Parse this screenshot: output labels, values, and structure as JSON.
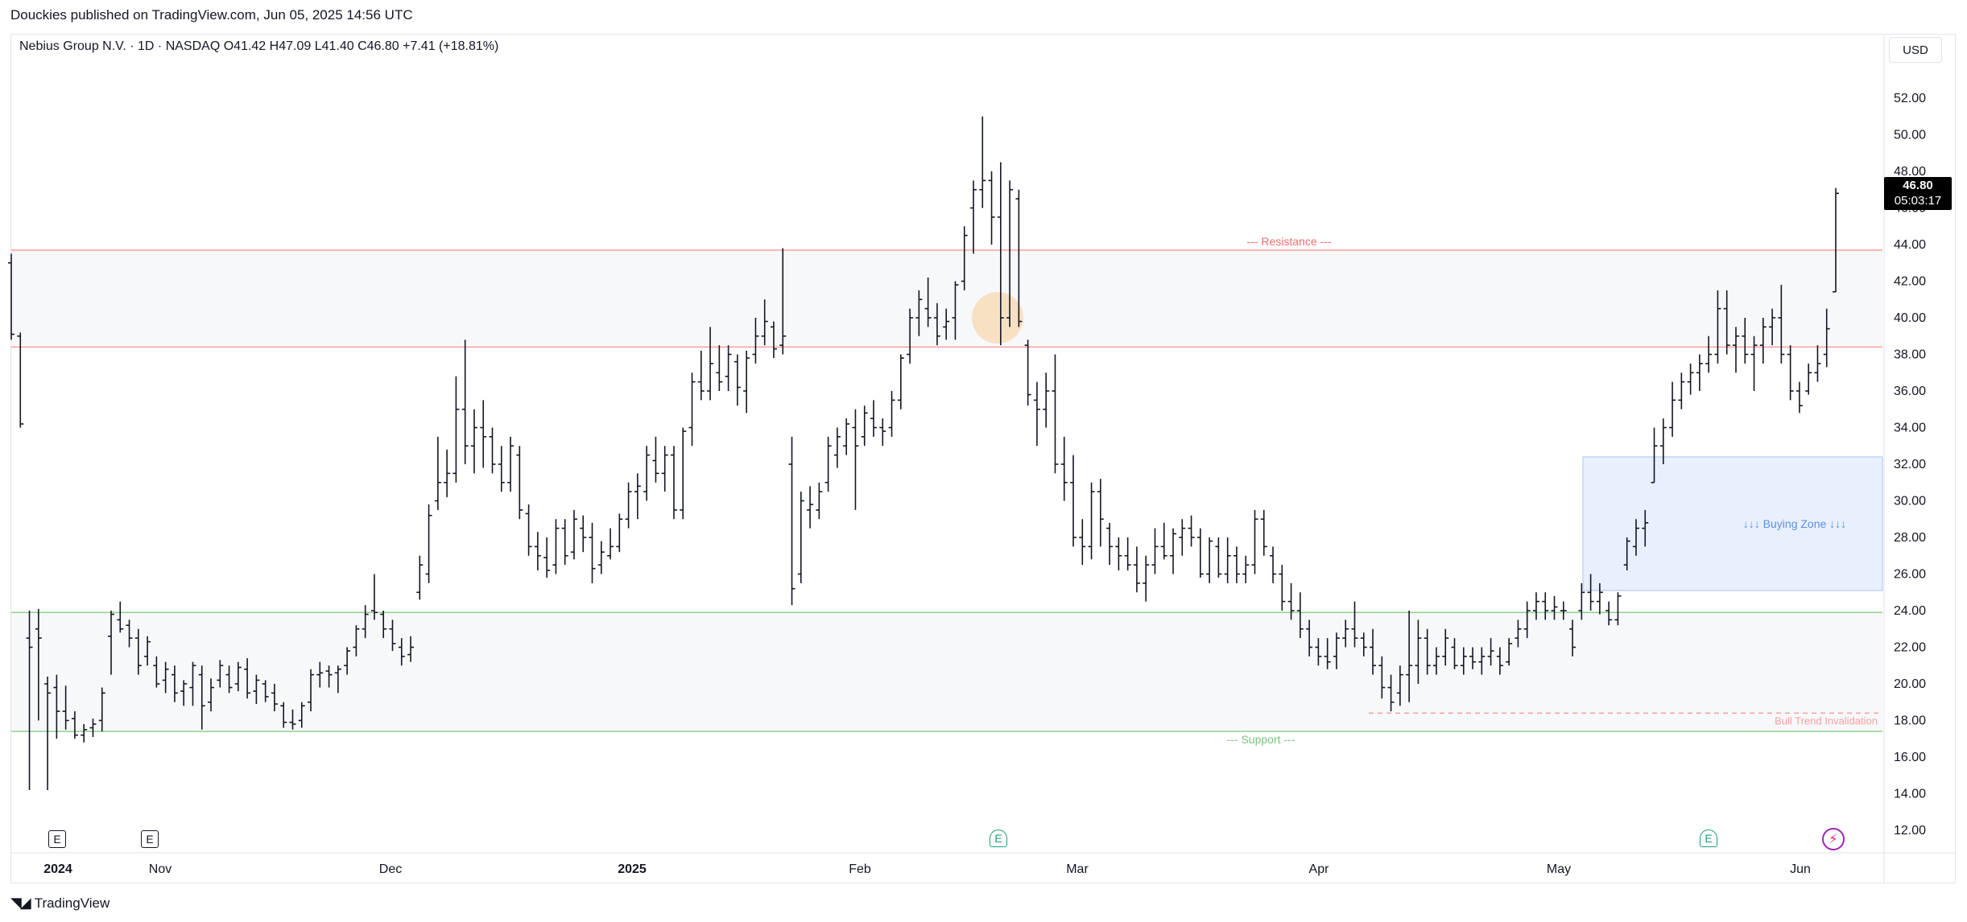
{
  "header": {
    "published_text": "Douckies published on TradingView.com, Jun 05, 2025 14:56 UTC"
  },
  "legend": {
    "text": "Nebius Group N.V. · 1D · NASDAQ  O41.42  H47.09  L41.40  C46.80  +7.41 (+18.81%)"
  },
  "price_axis": {
    "currency": "USD",
    "last_price": "46.80",
    "countdown": "05:03:17"
  },
  "footer": {
    "logo_text": "TradingView"
  },
  "colors": {
    "bar": "#131722",
    "resistance_line": "#f7a1a1",
    "resistance_label": "#f26d6d",
    "support_line": "#8fd18f",
    "support_label": "#7cc47c",
    "zone_fill": "#f7f8fa",
    "buying_zone_fill": "#e8f0fd",
    "buying_zone_border": "#a8c4f0",
    "buying_zone_label": "#5b8ee6",
    "invalidation": "#f2a0a0",
    "highlight_circle": "#f8dcb7"
  },
  "icons": {
    "earnings_past": "E",
    "earnings_future": "E",
    "split": "lightning-icon"
  },
  "chart_data": {
    "type": "ohlc",
    "title": "Nebius Group N.V. · 1D · NASDAQ",
    "ylim": [
      11,
      54
    ],
    "y_ticks": [
      "52.00",
      "50.00",
      "48.00",
      "46.00",
      "44.00",
      "42.00",
      "40.00",
      "38.00",
      "36.00",
      "34.00",
      "32.00",
      "30.00",
      "28.00",
      "26.00",
      "24.00",
      "22.00",
      "20.00",
      "18.00",
      "16.00",
      "14.00",
      "12.00"
    ],
    "x_ticks": [
      "2024",
      "Nov",
      "Dec",
      "2025",
      "Feb",
      "Mar",
      "Apr",
      "May",
      "Jun"
    ],
    "annotations": {
      "resistance_label": "--- Resistance ---",
      "support_label": "--- Support ---",
      "buying_zone_label": "↓↓↓ Buying Zone ↓↓↓",
      "invalidation_label": "Bull Trend Invalidation",
      "resistance_top": 43.7,
      "resistance_bottom": 38.4,
      "support_top": 23.9,
      "support_bottom": 17.4,
      "buying_zone_top": 32.4,
      "buying_zone_bottom": 25.1,
      "invalidation_level": 18.4,
      "highlight_price": 40.0
    },
    "bars": [
      [
        43.0,
        43.5,
        38.8,
        39.1
      ],
      [
        39.0,
        39.2,
        34.0,
        34.2
      ],
      [
        22.5,
        24.0,
        14.2,
        22.0
      ],
      [
        23.0,
        24.1,
        18.0,
        22.5
      ],
      [
        20.0,
        20.4,
        14.2,
        19.5
      ],
      [
        19.8,
        20.5,
        17.0,
        18.5
      ],
      [
        18.5,
        19.9,
        17.5,
        18.0
      ],
      [
        18.1,
        18.5,
        17.0,
        17.2
      ],
      [
        17.2,
        17.8,
        16.8,
        17.5
      ],
      [
        17.6,
        18.1,
        17.1,
        17.8
      ],
      [
        18.0,
        19.8,
        17.4,
        19.5
      ],
      [
        22.6,
        24.0,
        20.5,
        23.8
      ],
      [
        23.5,
        24.5,
        22.8,
        23.0
      ],
      [
        23.2,
        23.5,
        22.0,
        22.5
      ],
      [
        22.5,
        23.0,
        20.5,
        21.0
      ],
      [
        21.5,
        22.6,
        21.0,
        22.3
      ],
      [
        21.0,
        21.5,
        19.8,
        20.0
      ],
      [
        20.2,
        21.2,
        19.5,
        20.8
      ],
      [
        20.5,
        21.0,
        19.0,
        19.5
      ],
      [
        19.6,
        20.2,
        18.8,
        20.0
      ],
      [
        19.8,
        21.2,
        18.8,
        21.0
      ],
      [
        20.5,
        21.0,
        17.5,
        18.8
      ],
      [
        19.0,
        20.3,
        18.5,
        19.8
      ],
      [
        20.2,
        21.3,
        19.8,
        21.0
      ],
      [
        20.5,
        21.0,
        19.5,
        19.8
      ],
      [
        20.0,
        21.2,
        19.6,
        20.9
      ],
      [
        20.8,
        21.4,
        19.2,
        19.5
      ],
      [
        19.6,
        20.5,
        18.9,
        20.2
      ],
      [
        20.0,
        20.2,
        19.0,
        19.3
      ],
      [
        19.5,
        20.0,
        18.5,
        18.9
      ],
      [
        18.8,
        19.0,
        17.6,
        17.9
      ],
      [
        17.9,
        18.6,
        17.5,
        17.8
      ],
      [
        18.0,
        19.0,
        17.6,
        18.8
      ],
      [
        19.0,
        20.8,
        18.5,
        20.5
      ],
      [
        20.5,
        21.2,
        19.8,
        20.6
      ],
      [
        20.7,
        21.0,
        19.8,
        20.5
      ],
      [
        20.6,
        21.0,
        19.5,
        20.8
      ],
      [
        21.0,
        22.0,
        20.5,
        21.8
      ],
      [
        22.0,
        23.2,
        21.5,
        23.0
      ],
      [
        23.0,
        24.3,
        22.5,
        23.8
      ],
      [
        24.0,
        26.0,
        23.5,
        23.9
      ],
      [
        23.8,
        24.0,
        22.5,
        23.0
      ],
      [
        23.0,
        23.5,
        21.8,
        22.2
      ],
      [
        22.0,
        22.5,
        21.0,
        21.5
      ],
      [
        21.6,
        22.6,
        21.2,
        22.0
      ],
      [
        25.0,
        27.0,
        24.6,
        26.5
      ],
      [
        26.0,
        29.8,
        25.5,
        29.2
      ],
      [
        30.0,
        33.5,
        29.5,
        31.0
      ],
      [
        31.0,
        32.8,
        30.2,
        31.5
      ],
      [
        31.5,
        36.8,
        31.0,
        35.0
      ],
      [
        35.0,
        38.8,
        32.0,
        33.0
      ],
      [
        33.0,
        35.0,
        31.5,
        34.0
      ],
      [
        34.0,
        35.5,
        31.8,
        33.5
      ],
      [
        33.5,
        34.0,
        31.5,
        32.0
      ],
      [
        32.0,
        33.0,
        30.5,
        31.0
      ],
      [
        31.0,
        33.5,
        30.5,
        33.0
      ],
      [
        32.5,
        33.0,
        29.0,
        29.5
      ],
      [
        29.3,
        29.8,
        27.0,
        27.5
      ],
      [
        27.5,
        28.3,
        26.2,
        27.0
      ],
      [
        26.9,
        28.0,
        25.8,
        26.2
      ],
      [
        26.5,
        29.0,
        26.0,
        28.5
      ],
      [
        28.5,
        29.0,
        26.5,
        27.0
      ],
      [
        27.2,
        29.5,
        26.8,
        29.0
      ],
      [
        28.5,
        29.2,
        27.2,
        28.0
      ],
      [
        28.0,
        28.8,
        25.5,
        26.3
      ],
      [
        26.5,
        27.8,
        26.0,
        27.2
      ],
      [
        27.0,
        28.5,
        26.8,
        27.5
      ],
      [
        27.5,
        29.3,
        27.2,
        29.0
      ],
      [
        29.0,
        31.0,
        28.5,
        30.5
      ],
      [
        30.5,
        31.5,
        29.0,
        30.8
      ],
      [
        30.5,
        33.0,
        30.0,
        32.5
      ],
      [
        32.2,
        33.5,
        31.0,
        31.5
      ],
      [
        31.5,
        33.0,
        30.5,
        32.5
      ],
      [
        32.5,
        33.0,
        29.0,
        29.5
      ],
      [
        29.5,
        34.0,
        29.0,
        33.8
      ],
      [
        34.0,
        37.0,
        33.0,
        36.5
      ],
      [
        36.5,
        38.2,
        35.5,
        36.0
      ],
      [
        36.0,
        39.5,
        35.5,
        37.5
      ],
      [
        37.0,
        38.5,
        36.0,
        36.5
      ],
      [
        36.8,
        38.5,
        36.0,
        38.0
      ],
      [
        37.6,
        38.0,
        35.2,
        36.2
      ],
      [
        36.0,
        38.2,
        34.8,
        37.8
      ],
      [
        38.0,
        40.0,
        37.5,
        39.0
      ],
      [
        39.0,
        41.0,
        38.5,
        39.8
      ],
      [
        39.5,
        39.8,
        37.8,
        38.3
      ],
      [
        38.5,
        43.8,
        38.0,
        39.0
      ],
      [
        32.0,
        33.5,
        24.3,
        25.2
      ],
      [
        26.0,
        30.5,
        25.5,
        30.0
      ],
      [
        29.5,
        30.8,
        28.5,
        29.8
      ],
      [
        29.5,
        31.0,
        29.0,
        30.5
      ],
      [
        31.0,
        33.5,
        30.5,
        33.0
      ],
      [
        32.5,
        34.0,
        31.8,
        33.5
      ],
      [
        33.0,
        34.5,
        32.5,
        34.2
      ],
      [
        34.0,
        35.0,
        29.5,
        33.0
      ],
      [
        33.5,
        35.2,
        33.0,
        34.8
      ],
      [
        34.5,
        35.5,
        33.5,
        34.0
      ],
      [
        34.0,
        34.5,
        33.0,
        33.8
      ],
      [
        34.0,
        36.0,
        33.5,
        35.5
      ],
      [
        35.5,
        38.0,
        35.0,
        37.8
      ],
      [
        38.0,
        40.5,
        37.5,
        40.0
      ],
      [
        40.0,
        41.5,
        39.0,
        41.0
      ],
      [
        40.5,
        42.2,
        39.5,
        40.0
      ],
      [
        40.0,
        40.8,
        38.5,
        39.0
      ],
      [
        39.5,
        40.5,
        38.8,
        39.8
      ],
      [
        40.0,
        42.0,
        38.8,
        41.8
      ],
      [
        42.0,
        45.0,
        41.5,
        44.5
      ],
      [
        46.0,
        47.5,
        43.5,
        47.0
      ],
      [
        47.0,
        51.0,
        46.0,
        47.5
      ],
      [
        47.5,
        48.0,
        44.0,
        45.5
      ],
      [
        45.5,
        48.5,
        38.5,
        40.0
      ],
      [
        40.0,
        47.5,
        39.5,
        47.0
      ],
      [
        46.5,
        47.0,
        39.5,
        39.8
      ],
      [
        38.5,
        38.8,
        35.2,
        35.8
      ],
      [
        35.5,
        36.5,
        33.0,
        35.0
      ],
      [
        35.0,
        37.0,
        34.0,
        36.0
      ],
      [
        36.0,
        38.0,
        31.5,
        32.0
      ],
      [
        32.0,
        33.5,
        30.0,
        31.0
      ],
      [
        31.0,
        32.5,
        27.5,
        28.0
      ],
      [
        28.0,
        29.0,
        26.5,
        27.5
      ],
      [
        27.5,
        31.0,
        26.8,
        30.5
      ],
      [
        30.5,
        31.2,
        27.5,
        29.0
      ],
      [
        28.5,
        28.8,
        26.5,
        27.5
      ],
      [
        27.5,
        28.0,
        26.2,
        27.0
      ],
      [
        27.0,
        28.0,
        26.2,
        26.5
      ],
      [
        26.5,
        27.5,
        25.0,
        25.5
      ],
      [
        25.5,
        27.0,
        24.5,
        26.5
      ],
      [
        26.5,
        28.5,
        26.0,
        27.5
      ],
      [
        27.5,
        28.8,
        26.8,
        27.0
      ],
      [
        27.0,
        28.5,
        26.0,
        28.2
      ],
      [
        28.0,
        29.0,
        27.0,
        28.5
      ],
      [
        28.5,
        29.2,
        27.5,
        28.0
      ],
      [
        28.0,
        28.5,
        25.8,
        26.0
      ],
      [
        26.0,
        28.0,
        25.5,
        27.8
      ],
      [
        27.5,
        28.0,
        25.8,
        26.0
      ],
      [
        26.0,
        28.0,
        25.5,
        27.0
      ],
      [
        27.0,
        27.5,
        25.5,
        26.0
      ],
      [
        26.0,
        27.0,
        25.5,
        26.5
      ],
      [
        26.5,
        29.5,
        26.0,
        29.0
      ],
      [
        29.0,
        29.5,
        27.0,
        27.5
      ],
      [
        27.0,
        27.5,
        25.5,
        26.0
      ],
      [
        26.0,
        26.5,
        24.0,
        24.5
      ],
      [
        24.5,
        25.5,
        23.5,
        24.0
      ],
      [
        24.0,
        25.0,
        22.5,
        23.0
      ],
      [
        23.0,
        23.5,
        21.5,
        22.0
      ],
      [
        22.0,
        22.5,
        21.0,
        21.5
      ],
      [
        21.5,
        22.5,
        20.8,
        21.2
      ],
      [
        21.5,
        22.8,
        20.8,
        22.5
      ],
      [
        22.5,
        23.5,
        22.0,
        23.0
      ],
      [
        23.0,
        24.5,
        22.0,
        22.5
      ],
      [
        22.5,
        22.8,
        21.5,
        22.0
      ],
      [
        22.0,
        23.0,
        20.5,
        21.0
      ],
      [
        21.0,
        21.5,
        19.2,
        19.8
      ],
      [
        19.8,
        20.5,
        18.5,
        19.0
      ],
      [
        19.5,
        21.0,
        18.8,
        20.5
      ],
      [
        20.5,
        24.0,
        19.0,
        21.0
      ],
      [
        21.0,
        23.5,
        20.0,
        22.5
      ],
      [
        22.5,
        23.0,
        20.5,
        21.0
      ],
      [
        21.0,
        22.0,
        20.5,
        21.5
      ],
      [
        21.5,
        23.0,
        21.0,
        22.5
      ],
      [
        22.0,
        22.5,
        20.8,
        21.0
      ],
      [
        21.0,
        22.0,
        20.5,
        21.5
      ],
      [
        21.5,
        22.0,
        20.8,
        21.2
      ],
      [
        21.2,
        22.0,
        20.5,
        21.5
      ],
      [
        21.5,
        22.5,
        21.0,
        21.8
      ],
      [
        21.5,
        22.0,
        20.5,
        21.0
      ],
      [
        21.2,
        22.5,
        21.0,
        22.2
      ],
      [
        22.5,
        23.5,
        22.0,
        23.0
      ],
      [
        23.0,
        24.5,
        22.5,
        24.0
      ],
      [
        24.0,
        25.0,
        23.5,
        24.5
      ],
      [
        24.5,
        25.0,
        23.5,
        24.0
      ],
      [
        24.0,
        24.8,
        23.5,
        24.2
      ],
      [
        24.0,
        24.5,
        23.5,
        24.0
      ],
      [
        23.0,
        23.5,
        21.5,
        22.0
      ],
      [
        24.0,
        25.5,
        23.5,
        25.0
      ],
      [
        25.0,
        26.0,
        24.0,
        24.5
      ],
      [
        24.5,
        25.5,
        23.8,
        25.0
      ],
      [
        24.0,
        24.5,
        23.2,
        23.5
      ],
      [
        23.5,
        25.0,
        23.2,
        24.8
      ],
      [
        26.5,
        28.0,
        26.2,
        27.8
      ],
      [
        27.5,
        29.0,
        27.0,
        28.5
      ],
      [
        28.5,
        29.5,
        27.5,
        28.8
      ],
      [
        31.0,
        34.0,
        31.0,
        33.0
      ],
      [
        33.0,
        34.5,
        32.0,
        34.0
      ],
      [
        34.0,
        36.5,
        33.5,
        35.5
      ],
      [
        35.5,
        37.0,
        35.0,
        36.5
      ],
      [
        36.5,
        37.5,
        35.8,
        37.0
      ],
      [
        37.0,
        38.0,
        36.0,
        37.5
      ],
      [
        37.5,
        39.0,
        37.0,
        38.0
      ],
      [
        38.0,
        41.5,
        37.5,
        40.5
      ],
      [
        40.5,
        41.5,
        38.0,
        38.5
      ],
      [
        38.5,
        39.5,
        37.0,
        39.0
      ],
      [
        39.0,
        40.0,
        37.5,
        38.0
      ],
      [
        38.0,
        39.0,
        36.0,
        38.5
      ],
      [
        38.5,
        40.0,
        37.5,
        39.5
      ],
      [
        39.5,
        40.5,
        38.5,
        40.0
      ],
      [
        40.0,
        41.8,
        37.5,
        38.0
      ],
      [
        38.0,
        38.5,
        35.5,
        36.0
      ],
      [
        36.0,
        36.5,
        34.8,
        35.2
      ],
      [
        36.0,
        37.5,
        35.8,
        37.0
      ],
      [
        37.0,
        38.5,
        36.5,
        37.5
      ],
      [
        38.0,
        40.5,
        37.3,
        39.4
      ],
      [
        41.42,
        47.09,
        41.4,
        46.8
      ]
    ]
  }
}
